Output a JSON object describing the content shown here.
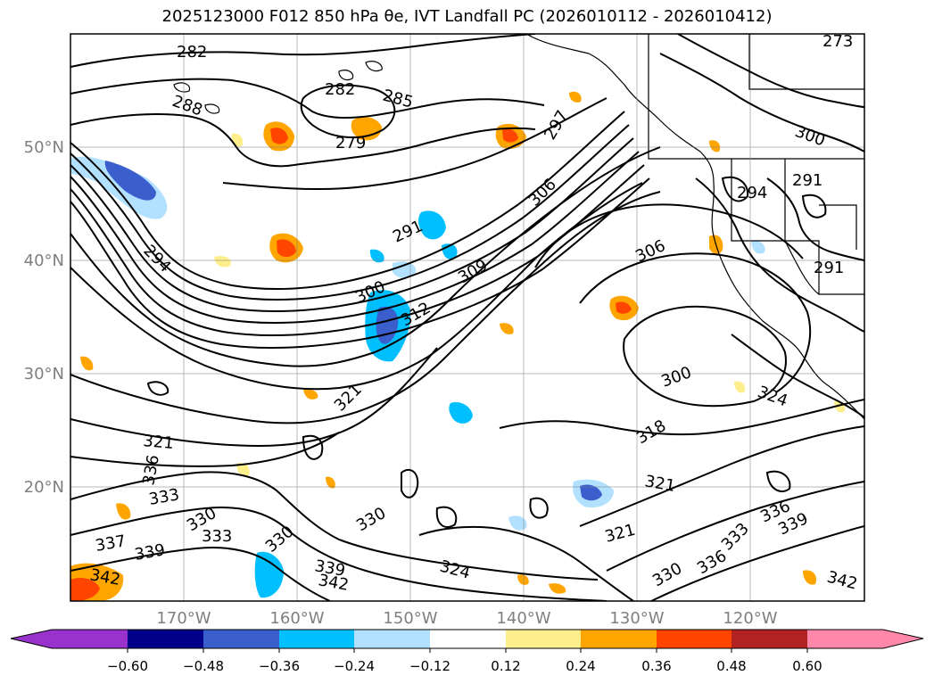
{
  "title": "2025123000 F012 850 hPa θe, IVT Landfall PC (2026010112 - 2026010412)",
  "lon_ticks": [
    "170°W",
    "160°W",
    "150°W",
    "140°W",
    "130°W",
    "120°W"
  ],
  "lat_ticks": [
    "50°N",
    "40°N",
    "30°N",
    "20°N"
  ],
  "colorbar": {
    "ticks": [
      "−0.60",
      "−0.48",
      "−0.36",
      "−0.24",
      "−0.12",
      "0.12",
      "0.24",
      "0.36",
      "0.48",
      "0.60"
    ],
    "colors": [
      "#9932cc",
      "#00008b",
      "#3a5fcd",
      "#00bfff",
      "#b2e0ff",
      "#ffffff",
      "#ffee8c",
      "#ffa500",
      "#ff4500",
      "#b22222",
      "#ff88aa"
    ]
  },
  "contour_labels": [
    "282",
    "288",
    "279",
    "282",
    "285",
    "297",
    "306",
    "291",
    "294",
    "306",
    "300",
    "309",
    "312",
    "294",
    "291",
    "321",
    "300",
    "324",
    "318",
    "321",
    "321",
    "336",
    "333",
    "337",
    "339",
    "330",
    "333",
    "330",
    "339",
    "342",
    "330",
    "324",
    "321",
    "330",
    "336",
    "333",
    "336",
    "339",
    "342",
    "342",
    "300",
    "291",
    "273"
  ],
  "chart_data": {
    "type": "contour-map",
    "title": "2025123000 F012 850 hPa θe, IVT Landfall PC (2026010112 - 2026010412)",
    "projection": "PlateCarree",
    "xlim": [
      -180,
      -110
    ],
    "ylim": [
      10,
      60
    ],
    "grid": true,
    "colorbar": {
      "orientation": "horizontal",
      "levels": [
        -0.6,
        -0.48,
        -0.36,
        -0.24,
        -0.12,
        0.12,
        0.24,
        0.36,
        0.48,
        0.6
      ],
      "extend": "both"
    },
    "contour_values": [
      279,
      282,
      285,
      288,
      291,
      294,
      297,
      300,
      306,
      309,
      312,
      318,
      321,
      324,
      330,
      333,
      336,
      337,
      339,
      342
    ]
  }
}
